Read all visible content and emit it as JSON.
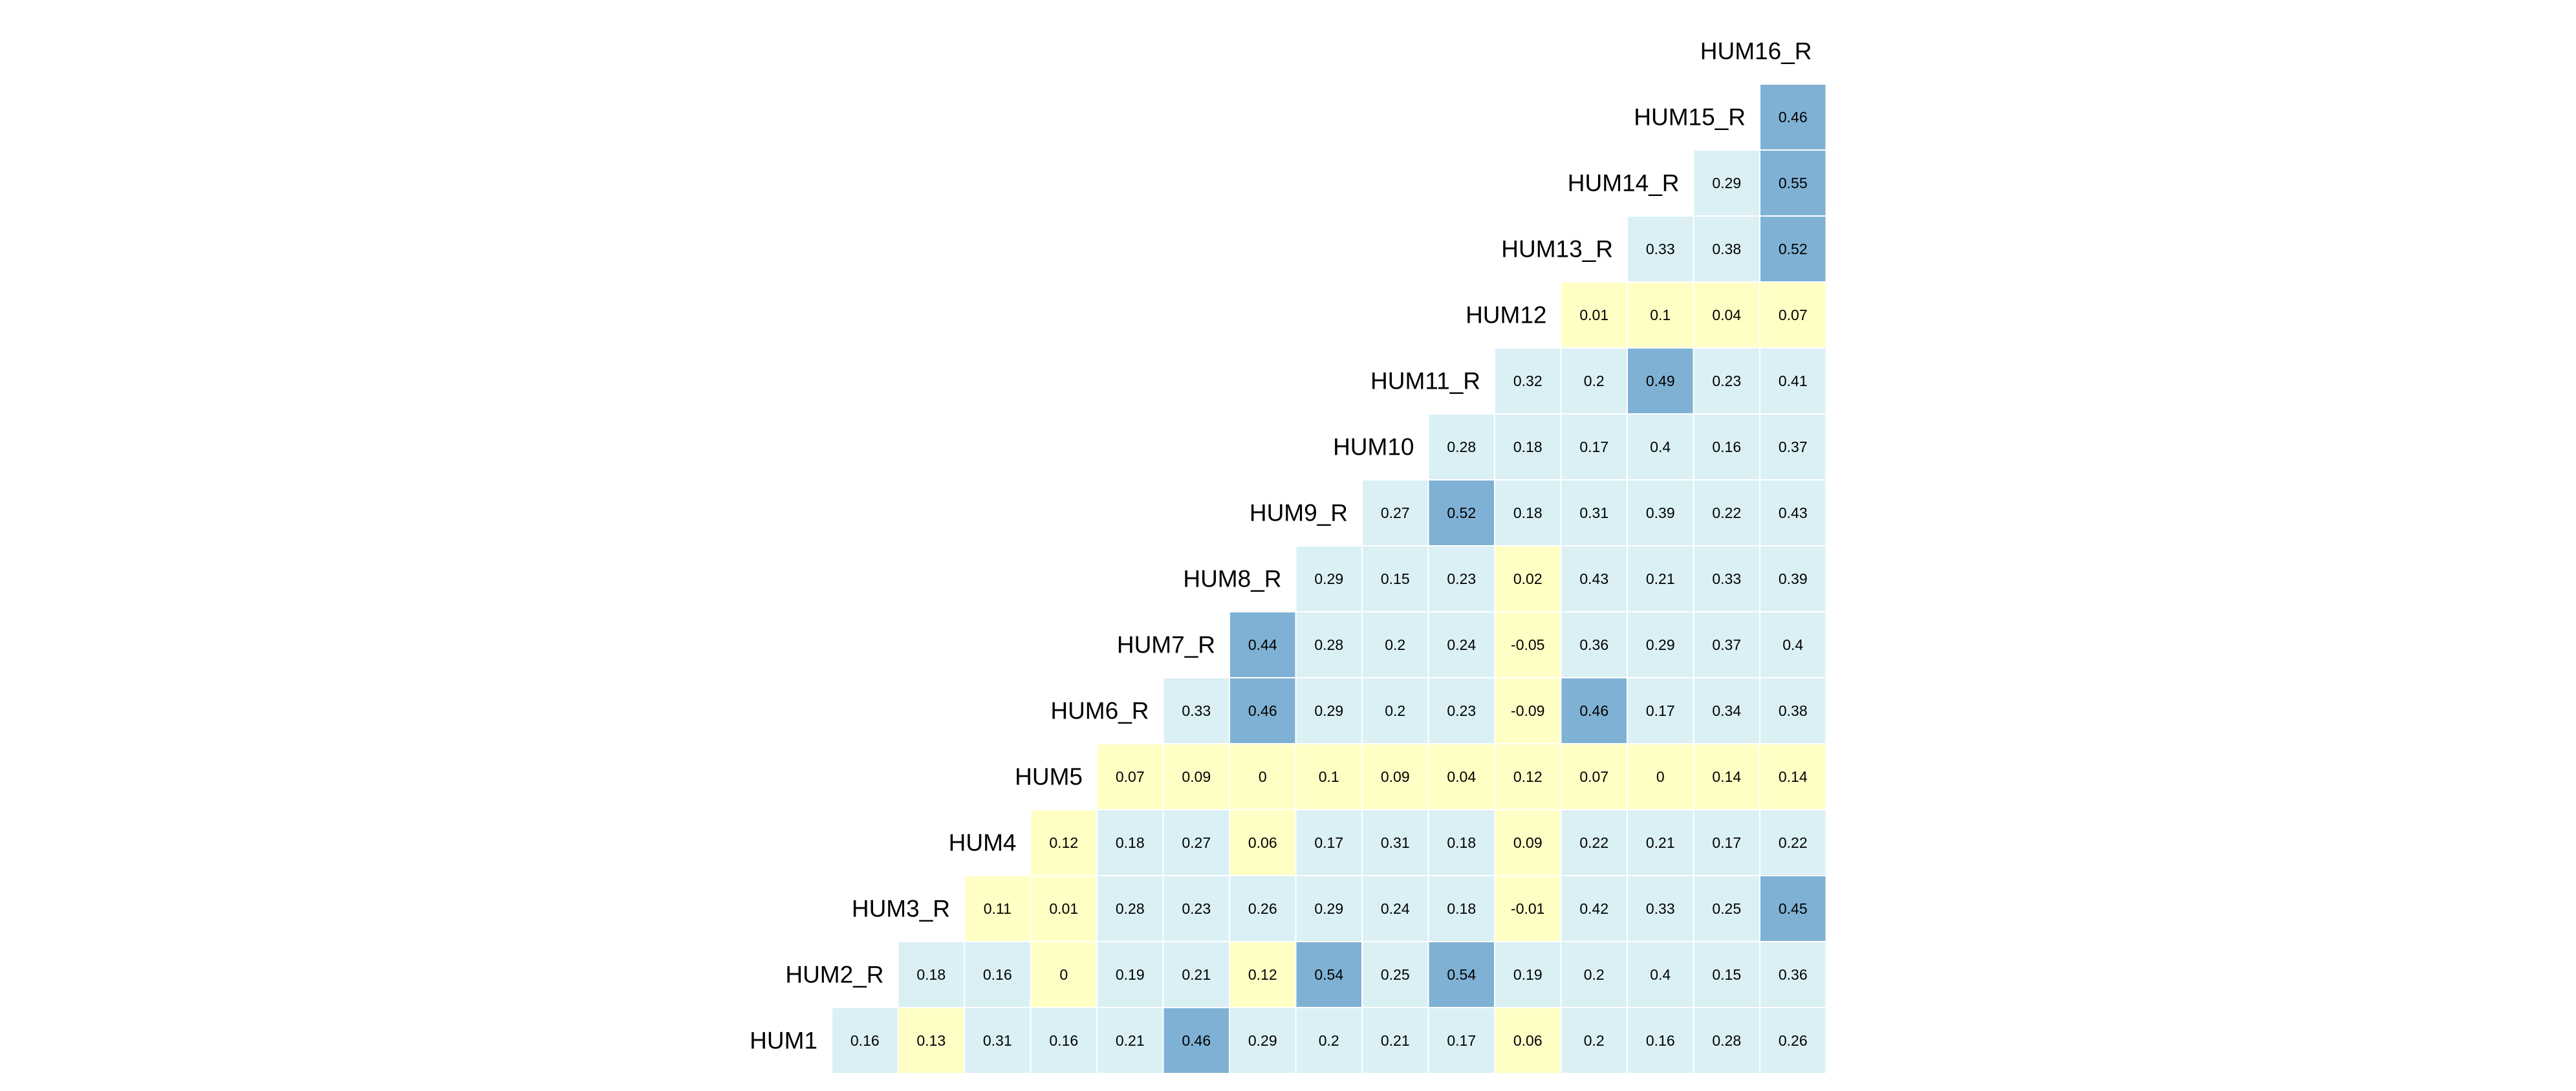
{
  "chart_data": {
    "type": "heatmap",
    "layout": "lower-triangular correlation matrix, row labels on the diagonal",
    "rows": [
      "HUM1",
      "HUM2_R",
      "HUM3_R",
      "HUM4",
      "HUM5",
      "HUM6_R",
      "HUM7_R",
      "HUM8_R",
      "HUM9_R",
      "HUM10",
      "HUM11_R",
      "HUM12",
      "HUM13_R",
      "HUM14_R",
      "HUM15_R",
      "HUM16_R"
    ],
    "displayed_labels": [
      "HUM1",
      "HUM2_R",
      "HUM3_R",
      "HUM4",
      "HUM5",
      "HUM6_R",
      "HUM7_R",
      "HUM8_R",
      "HUM9_R",
      "HUM10",
      "HUM11_R",
      "HUM12",
      "HUM13_R",
      "HUM14_R",
      "HUM15_R",
      "HUM16_R"
    ],
    "values": [
      [
        0.16,
        0.13,
        0.31,
        0.16,
        0.21,
        0.46,
        0.29,
        0.2,
        0.21,
        0.17,
        0.06,
        0.2,
        0.16,
        0.28,
        0.26
      ],
      [
        0.18,
        0.16,
        0,
        0.19,
        0.21,
        0.12,
        0.54,
        0.25,
        0.54,
        0.19,
        0.2,
        0.4,
        0.15,
        0.36
      ],
      [
        0.11,
        0.01,
        0.28,
        0.23,
        0.26,
        0.29,
        0.24,
        0.18,
        -0.01,
        0.42,
        0.33,
        0.25,
        0.45
      ],
      [
        0.12,
        0.18,
        0.27,
        0.06,
        0.17,
        0.31,
        0.18,
        0.09,
        0.22,
        0.21,
        0.17,
        0.22
      ],
      [
        0.07,
        0.09,
        0,
        0.1,
        0.09,
        0.04,
        0.12,
        0.07,
        0,
        0.14,
        0.14
      ],
      [
        0.33,
        0.46,
        0.29,
        0.2,
        0.23,
        -0.09,
        0.46,
        0.17,
        0.34,
        0.38
      ],
      [
        0.44,
        0.28,
        0.2,
        0.24,
        -0.05,
        0.36,
        0.29,
        0.37,
        0.4
      ],
      [
        0.29,
        0.15,
        0.23,
        0.02,
        0.43,
        0.21,
        0.33,
        0.39
      ],
      [
        0.27,
        0.52,
        0.18,
        0.31,
        0.39,
        0.22,
        0.43
      ],
      [
        0.28,
        0.18,
        0.17,
        0.4,
        0.16,
        0.37
      ],
      [
        0.32,
        0.2,
        0.49,
        0.23,
        0.41
      ],
      [
        0.01,
        0.1,
        0.04,
        0.07
      ],
      [
        0.33,
        0.38,
        0.52
      ],
      [
        0.29,
        0.55
      ],
      [
        0.46
      ],
      []
    ],
    "cell_text": [
      [
        "0.16",
        "0.13",
        "0.31",
        "0.16",
        "0.21",
        "0.46",
        "0.29",
        "0.2",
        "0.21",
        "0.17",
        "0.06",
        "0.2",
        "0.16",
        "0.28",
        "0.26"
      ],
      [
        "0.18",
        "0.16",
        "0",
        "0.19",
        "0.21",
        "0.12",
        "0.54",
        "0.25",
        "0.54",
        "0.19",
        "0.2",
        "0.4",
        "0.15",
        "0.36"
      ],
      [
        "0.11",
        "0.01",
        "0.28",
        "0.23",
        "0.26",
        "0.29",
        "0.24",
        "0.18",
        "-0.01",
        "0.42",
        "0.33",
        "0.25",
        "0.45"
      ],
      [
        "0.12",
        "0.18",
        "0.27",
        "0.06",
        "0.17",
        "0.31",
        "0.18",
        "0.09",
        "0.22",
        "0.21",
        "0.17",
        "0.22"
      ],
      [
        "0.07",
        "0.09",
        "0",
        "0.1",
        "0.09",
        "0.04",
        "0.12",
        "0.07",
        "0",
        "0.14",
        "0.14"
      ],
      [
        "0.33",
        "0.46",
        "0.29",
        "0.2",
        "0.23",
        "-0.09",
        "0.46",
        "0.17",
        "0.34",
        "0.38"
      ],
      [
        "0.44",
        "0.28",
        "0.2",
        "0.24",
        "-0.05",
        "0.36",
        "0.29",
        "0.37",
        "0.4"
      ],
      [
        "0.29",
        "0.15",
        "0.23",
        "0.02",
        "0.43",
        "0.21",
        "0.33",
        "0.39"
      ],
      [
        "0.27",
        "0.52",
        "0.18",
        "0.31",
        "0.39",
        "0.22",
        "0.43"
      ],
      [
        "0.28",
        "0.18",
        "0.17",
        "0.4",
        "0.16",
        "0.37"
      ],
      [
        "0.32",
        "0.2",
        "0.49",
        "0.23",
        "0.41"
      ],
      [
        "0.01",
        "0.1",
        "0.04",
        "0.07"
      ],
      [
        "0.33",
        "0.38",
        "0.52"
      ],
      [
        "0.29",
        "0.55"
      ],
      [
        "0.46"
      ],
      []
    ],
    "colors": {
      "low": "#ffffc5",
      "mid": "#daf0f5",
      "high": "#7fb1d4",
      "cell_border": "#ffffff",
      "text": "#000000"
    },
    "color_scale": {
      "low_below": 0.15,
      "high_from": 0.44
    },
    "grid": false,
    "legend": "none"
  }
}
